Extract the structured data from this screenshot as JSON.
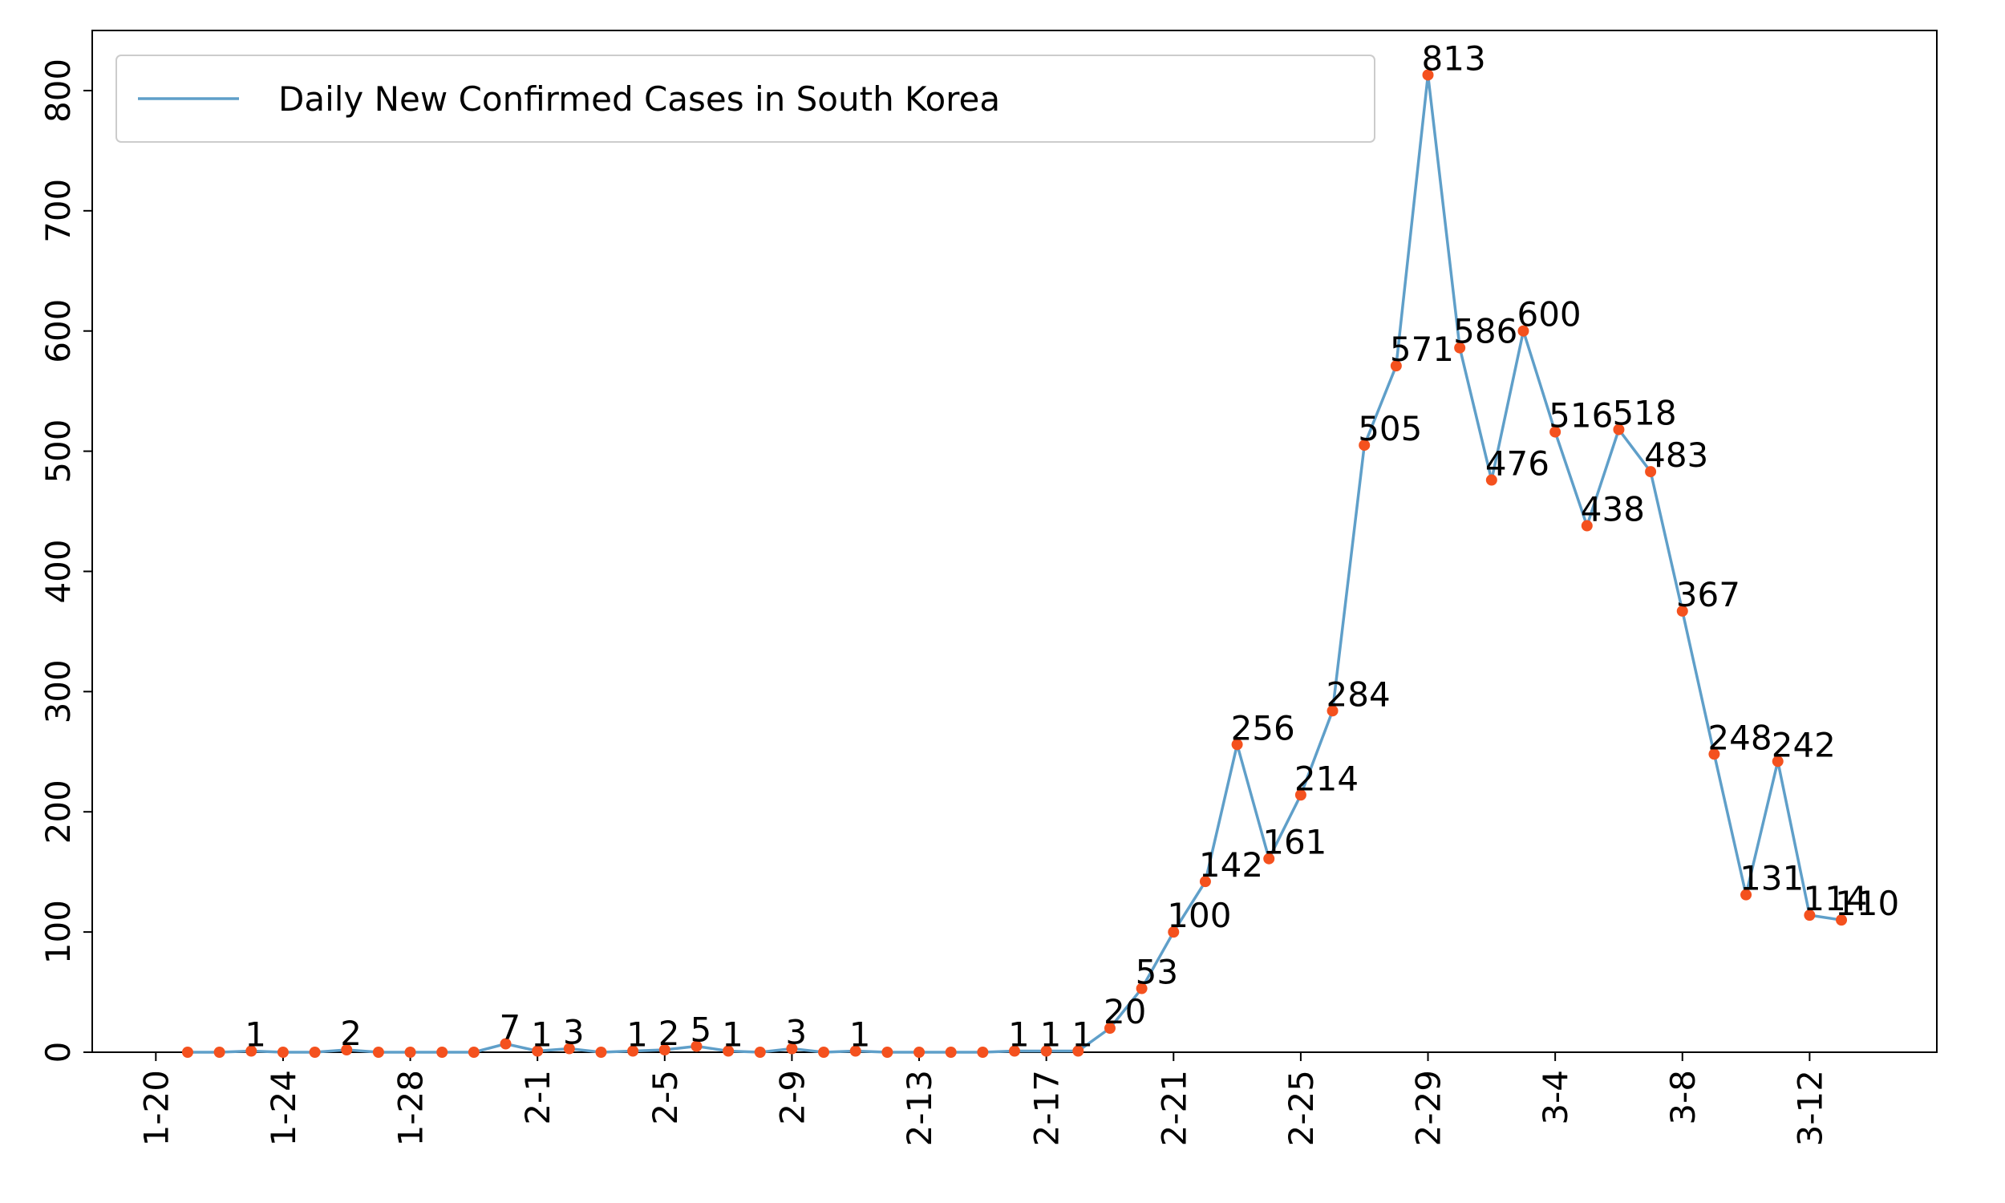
{
  "chart_data": {
    "type": "line",
    "x": [
      "1-21",
      "1-22",
      "1-23",
      "1-24",
      "1-25",
      "1-26",
      "1-27",
      "1-28",
      "1-29",
      "1-30",
      "1-31",
      "2-1",
      "2-2",
      "2-3",
      "2-4",
      "2-5",
      "2-6",
      "2-7",
      "2-8",
      "2-9",
      "2-10",
      "2-11",
      "2-12",
      "2-13",
      "2-14",
      "2-15",
      "2-16",
      "2-17",
      "2-18",
      "2-19",
      "2-20",
      "2-21",
      "2-22",
      "2-23",
      "2-24",
      "2-25",
      "2-26",
      "2-27",
      "2-28",
      "2-29",
      "3-1",
      "3-2",
      "3-3",
      "3-4",
      "3-5",
      "3-6",
      "3-7",
      "3-8",
      "3-9",
      "3-10",
      "3-11",
      "3-12",
      "3-13"
    ],
    "series": [
      {
        "name": "Daily New Confirmed Cases in South Korea",
        "color": "#5f9fc9",
        "marker_color": "#f4511e",
        "values": [
          0,
          0,
          1,
          0,
          0,
          2,
          0,
          0,
          0,
          0,
          7,
          1,
          3,
          0,
          1,
          2,
          5,
          1,
          0,
          3,
          0,
          1,
          0,
          0,
          0,
          0,
          1,
          1,
          1,
          20,
          53,
          100,
          142,
          256,
          161,
          214,
          284,
          505,
          571,
          813,
          586,
          476,
          600,
          516,
          438,
          518,
          483,
          367,
          248,
          131,
          242,
          114,
          110
        ]
      }
    ],
    "xlim": [
      "1-18",
      "3-16"
    ],
    "xticks": [
      "1-20",
      "1-24",
      "1-28",
      "2-1",
      "2-5",
      "2-9",
      "2-13",
      "2-17",
      "2-21",
      "2-25",
      "2-29",
      "3-4",
      "3-8",
      "3-12"
    ],
    "ylim": [
      0,
      850
    ],
    "yticks": [
      0,
      100,
      200,
      300,
      400,
      500,
      600,
      700,
      800
    ],
    "grid": false,
    "legend": "upper left"
  }
}
